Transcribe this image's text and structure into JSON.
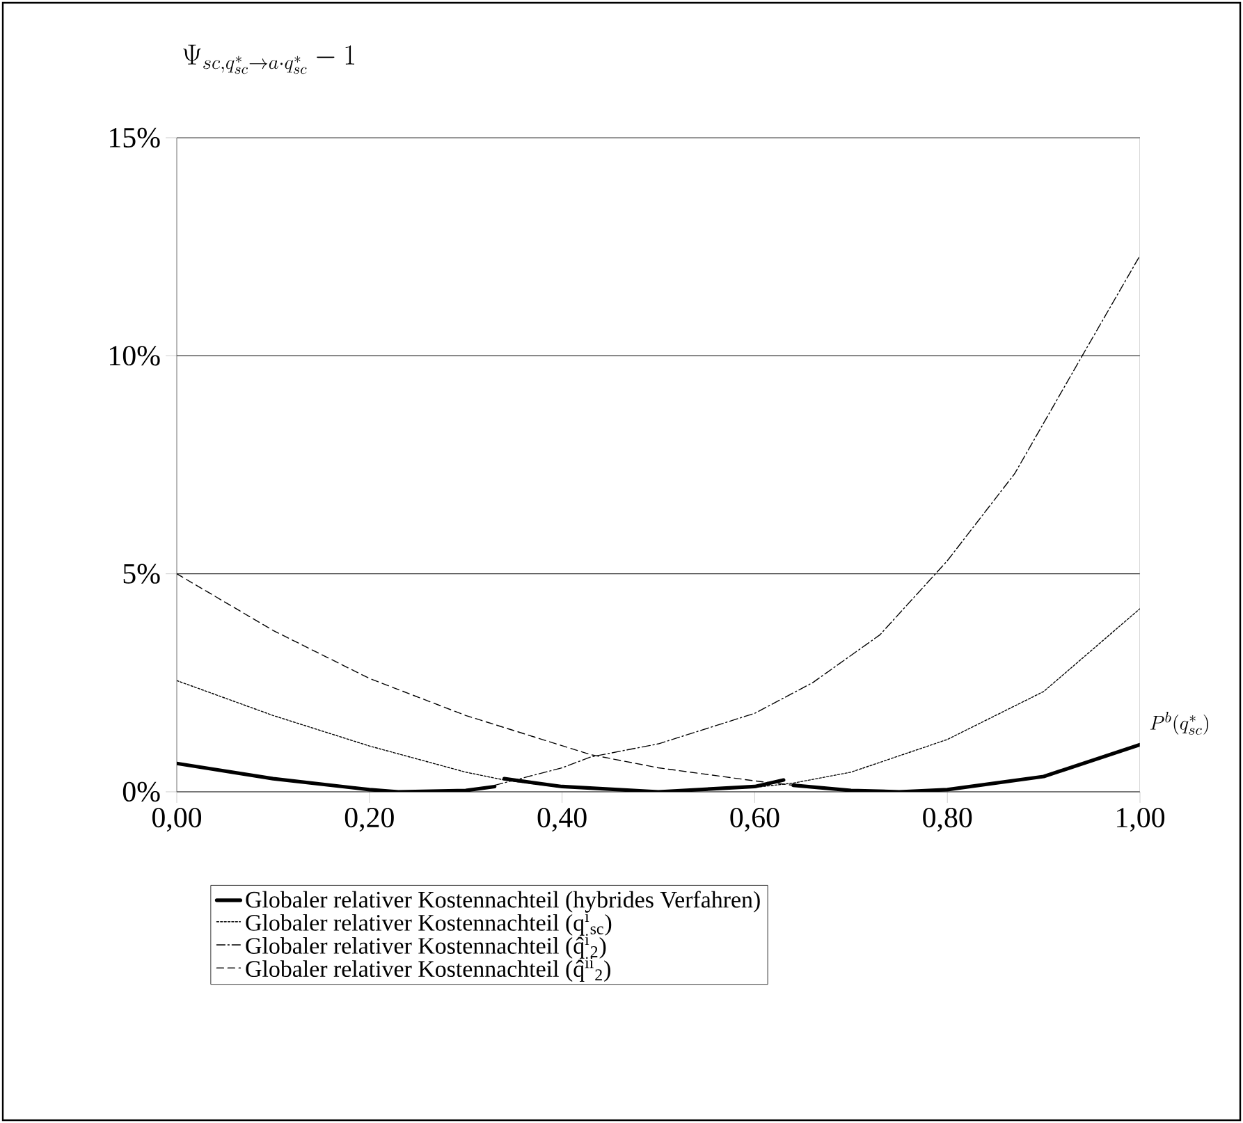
{
  "chart_data": {
    "type": "line",
    "xlabel": "P^{b}(q^{*}_{sc})",
    "ylabel": "\\Psi_{sc,q^{*}_{sc}\\to a\\cdot q^{*}_{sc}}-1",
    "xlim": [
      0,
      1
    ],
    "ylim": [
      0,
      15
    ],
    "xticks": [
      {
        "value": 0,
        "label": "0,00"
      },
      {
        "value": 0.2,
        "label": "0,20"
      },
      {
        "value": 0.4,
        "label": "0,40"
      },
      {
        "value": 0.6,
        "label": "0,60"
      },
      {
        "value": 0.8,
        "label": "0,80"
      },
      {
        "value": 1,
        "label": "1,00"
      }
    ],
    "yticks": [
      {
        "value": 0,
        "label": "0%"
      },
      {
        "value": 5,
        "label": "5%"
      },
      {
        "value": 10,
        "label": "10%"
      },
      {
        "value": 15,
        "label": "15%"
      }
    ],
    "grid": "y",
    "legend": "bottom",
    "marker": "none",
    "series": [
      {
        "name": "Globaler relativer Kostennachteil (hybrides Verfahren)",
        "color": "#000000",
        "line_style": "solid",
        "x": [
          0,
          0.1,
          0.2,
          0.23,
          0.3,
          0.33,
          0.335,
          0.34,
          0.4,
          0.5,
          0.6,
          0.63,
          0.635,
          0.64,
          0.7,
          0.75,
          0.8,
          0.9,
          1.0
        ],
        "values": [
          0.65,
          0.3,
          0.05,
          0,
          0.03,
          0.12,
          null,
          0.3,
          0.12,
          0,
          0.12,
          0.27,
          null,
          0.15,
          0.03,
          0,
          0.05,
          0.35,
          1.08
        ]
      },
      {
        "name": "Globaler relativer Kostennachteil (q$^{i}$$_{sc}$)",
        "color": "#000000",
        "line_style": "dotted",
        "x": [
          0,
          0.1,
          0.2,
          0.3,
          0.34,
          0.4,
          0.5,
          0.6,
          0.64,
          0.7,
          0.8,
          0.9,
          1.0
        ],
        "values": [
          2.55,
          1.75,
          1.05,
          0.45,
          0.27,
          0.1,
          0,
          0.1,
          0.2,
          0.45,
          1.2,
          2.3,
          4.2
        ]
      },
      {
        "name": "Globaler relativer Kostennachteil (q̂$^{i}$$_{2}$)",
        "color": "#000000",
        "line_style": "dashdot",
        "x": [
          0.33,
          0.4,
          0.43,
          0.5,
          0.6,
          0.66,
          0.73,
          0.8,
          0.87,
          0.94,
          1.0
        ],
        "values": [
          0.15,
          0.55,
          0.8,
          1.1,
          1.8,
          2.5,
          3.6,
          5.3,
          7.3,
          10,
          12.3
        ]
      },
      {
        "name": "Globaler relativer Kostennachteil (q̂$^{ii}$$_{2}$)",
        "color": "#000000",
        "line_style": "dashed",
        "x": [
          0,
          0.1,
          0.2,
          0.3,
          0.43,
          0.5,
          0.6,
          0.64
        ],
        "values": [
          5.0,
          3.7,
          2.6,
          1.75,
          0.85,
          0.55,
          0.25,
          0.15
        ]
      }
    ]
  }
}
